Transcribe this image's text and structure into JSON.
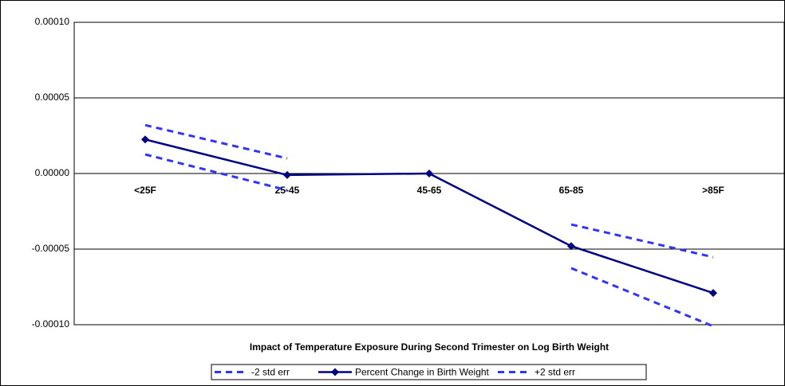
{
  "chart_data": {
    "type": "line",
    "title": "Impact of Temperature Exposure During Second Trimester on Log Birth Weight",
    "categories": [
      "<25F",
      "25-45",
      "45-65",
      "65-85",
      ">85F"
    ],
    "series": [
      {
        "name": "-2 std err",
        "color": "#3333ff",
        "dashed": true,
        "values": [
          1.26e-05,
          -1.1e-05,
          null,
          -6.26e-05,
          -0.000101
        ]
      },
      {
        "name": "Percent Change in Birth Weight",
        "color": "#000080",
        "dashed": false,
        "marker": "diamond",
        "values": [
          2.25e-05,
          -1e-06,
          0,
          -4.8e-05,
          -7.9e-05
        ]
      },
      {
        "name": "+2 std err",
        "color": "#3333ff",
        "dashed": true,
        "values": [
          3.2e-05,
          1e-05,
          null,
          -3.37e-05,
          -5.53e-05
        ]
      }
    ],
    "ylim": [
      -0.0001,
      0.0001
    ],
    "yticks": [
      {
        "value": -0.0001,
        "label": "-0.00010"
      },
      {
        "value": -5e-05,
        "label": "-0.00005"
      },
      {
        "value": 0,
        "label": "0.00000"
      },
      {
        "value": 5e-05,
        "label": "0.00005"
      },
      {
        "value": 0.0001,
        "label": "0.00010"
      }
    ],
    "grid": true,
    "legend": "bottom"
  }
}
